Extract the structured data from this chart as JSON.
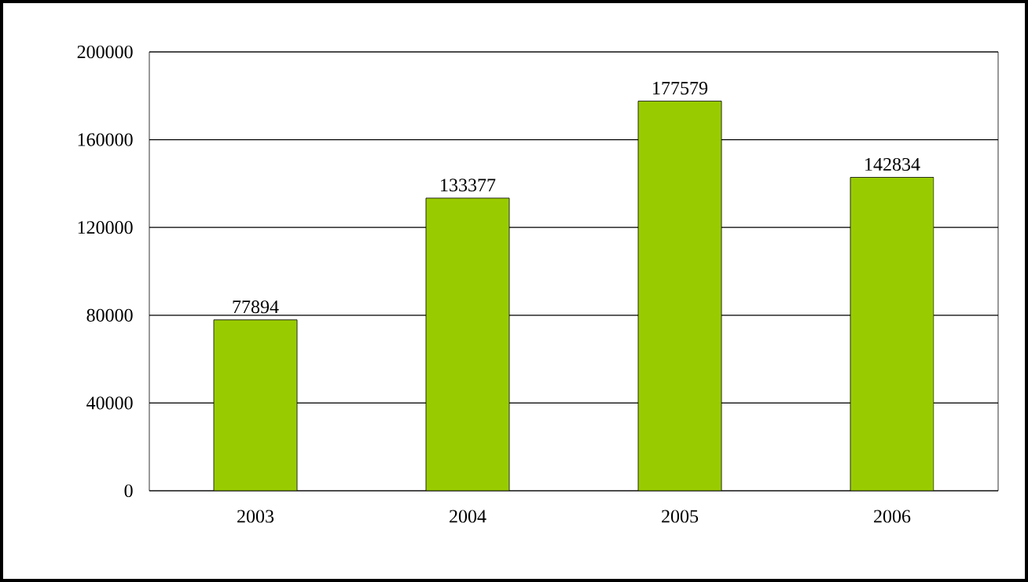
{
  "chart_data": {
    "type": "bar",
    "categories": [
      "2003",
      "2004",
      "2005",
      "2006"
    ],
    "values": [
      77894,
      133377,
      177579,
      142834
    ],
    "color": "#99cc00",
    "ylim": [
      0,
      200000
    ],
    "yticks": [
      0,
      40000,
      80000,
      120000,
      160000,
      200000
    ],
    "grid": "y",
    "data_labels": true
  }
}
